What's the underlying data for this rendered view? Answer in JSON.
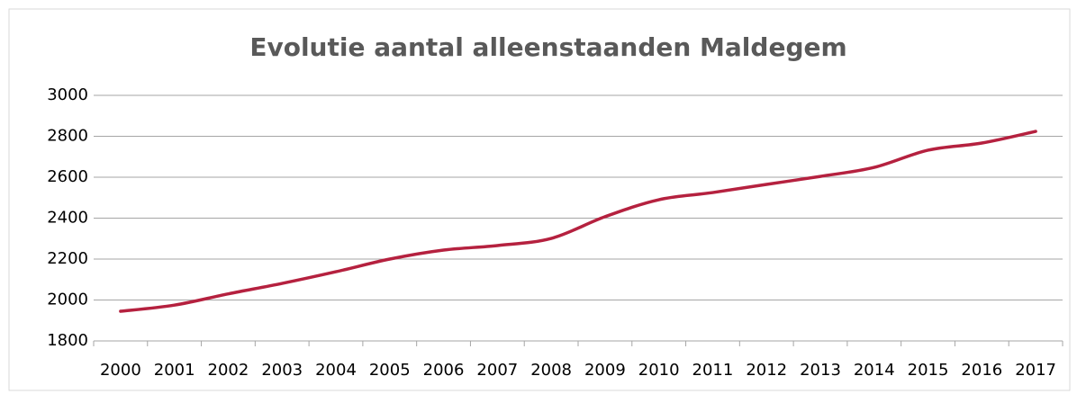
{
  "chart_data": {
    "type": "line",
    "title": "Evolutie aantal alleenstaanden Maldegem",
    "categories": [
      "2000",
      "2001",
      "2002",
      "2003",
      "2004",
      "2005",
      "2006",
      "2007",
      "2008",
      "2009",
      "2010",
      "2011",
      "2012",
      "2013",
      "2014",
      "2015",
      "2016",
      "2017"
    ],
    "series": [
      {
        "name": "alleenstaanden",
        "color": "#b5213f",
        "values": [
          1945,
          1975,
          2030,
          2081,
          2138,
          2200,
          2244,
          2266,
          2301,
          2407,
          2490,
          2525,
          2565,
          2604,
          2648,
          2732,
          2767,
          2824
        ]
      }
    ],
    "ylim": [
      1800,
      3000
    ],
    "yticks": [
      1800,
      2000,
      2200,
      2400,
      2600,
      2800,
      3000
    ],
    "grid": true
  }
}
